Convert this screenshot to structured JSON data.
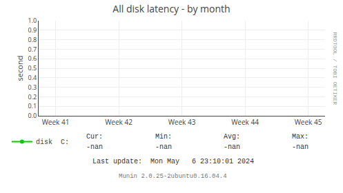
{
  "chart_data": {
    "type": "line",
    "title": "All disk latency - by month",
    "y_label": "second",
    "categories": [
      "Week 41",
      "Week 42",
      "Week 43",
      "Week 44",
      "Week 45"
    ],
    "series": [
      {
        "name": "disk  C:",
        "color": "#00cc00",
        "values": [
          null,
          null,
          null,
          null,
          null
        ]
      }
    ],
    "ylim": [
      0.0,
      1.0
    ],
    "yticks": [
      {
        "value": 0.0,
        "label": "0.0"
      },
      0.1,
      0.2,
      0.3,
      0.4,
      0.5,
      0.6,
      0.7,
      0.8,
      0.9,
      {
        "value": 1.0,
        "label": "1.0"
      }
    ],
    "grid": true,
    "legend": "bottom left",
    "annotations": [
      "RRDTOOL / TOBI OETIKER",
      "Cur:",
      "-nan",
      "Min:",
      "-nan",
      "Avg:",
      "-nan",
      "Max:",
      "-nan",
      "Last update:  Mon May   6 23:10:01 2024",
      "Munin 2.0.25-2ubuntu0.16.04.4"
    ]
  }
}
